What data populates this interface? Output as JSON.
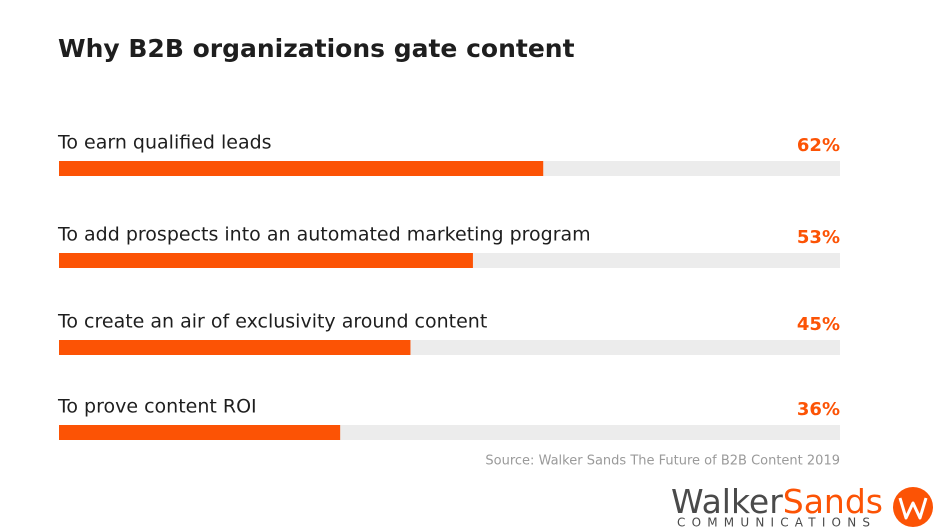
{
  "chart_data": {
    "type": "bar",
    "orientation": "horizontal",
    "title": "Why B2B organizations gate content",
    "categories": [
      "To earn qualified leads",
      "To add prospects into an automated marketing program",
      "To create an air of exclusivity around content",
      "To prove content ROI"
    ],
    "values": [
      62,
      53,
      45,
      36
    ],
    "value_labels": [
      "62%",
      "53%",
      "45%",
      "36%"
    ],
    "color": "#fc5305",
    "xlim": [
      0,
      100
    ],
    "source": "Source: Walker Sands The Future of B2B Content 2019",
    "logo": {
      "first": "Walker",
      "second": "Sands",
      "tagline": "COMMUNICATIONS"
    }
  }
}
